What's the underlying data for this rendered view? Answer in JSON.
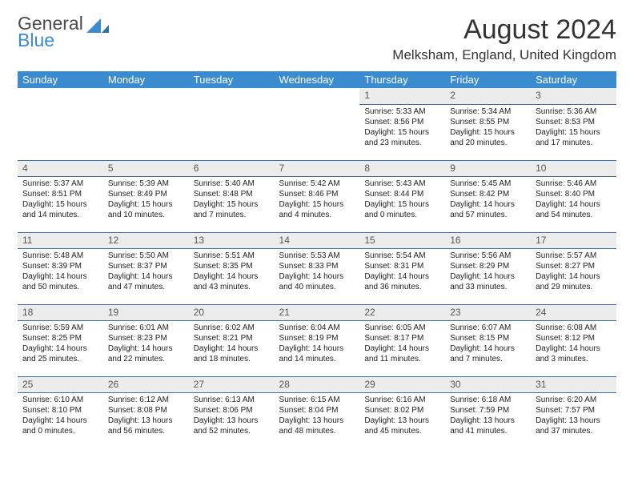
{
  "logo": {
    "line1": "General",
    "line2": "Blue",
    "mark_color": "#3a8bd0"
  },
  "title": "August 2024",
  "location": "Melksham, England, United Kingdom",
  "colors": {
    "header_bg": "#3a8bd0",
    "header_text": "#ffffff",
    "daynum_bg": "#ececec",
    "border": "#3a6ea5",
    "text": "#222222",
    "page_bg": "#ffffff"
  },
  "day_headers": [
    "Sunday",
    "Monday",
    "Tuesday",
    "Wednesday",
    "Thursday",
    "Friday",
    "Saturday"
  ],
  "weeks": [
    [
      null,
      null,
      null,
      null,
      {
        "n": "1",
        "sr": "Sunrise: 5:33 AM",
        "ss": "Sunset: 8:56 PM",
        "d1": "Daylight: 15 hours",
        "d2": "and 23 minutes."
      },
      {
        "n": "2",
        "sr": "Sunrise: 5:34 AM",
        "ss": "Sunset: 8:55 PM",
        "d1": "Daylight: 15 hours",
        "d2": "and 20 minutes."
      },
      {
        "n": "3",
        "sr": "Sunrise: 5:36 AM",
        "ss": "Sunset: 8:53 PM",
        "d1": "Daylight: 15 hours",
        "d2": "and 17 minutes."
      }
    ],
    [
      {
        "n": "4",
        "sr": "Sunrise: 5:37 AM",
        "ss": "Sunset: 8:51 PM",
        "d1": "Daylight: 15 hours",
        "d2": "and 14 minutes."
      },
      {
        "n": "5",
        "sr": "Sunrise: 5:39 AM",
        "ss": "Sunset: 8:49 PM",
        "d1": "Daylight: 15 hours",
        "d2": "and 10 minutes."
      },
      {
        "n": "6",
        "sr": "Sunrise: 5:40 AM",
        "ss": "Sunset: 8:48 PM",
        "d1": "Daylight: 15 hours",
        "d2": "and 7 minutes."
      },
      {
        "n": "7",
        "sr": "Sunrise: 5:42 AM",
        "ss": "Sunset: 8:46 PM",
        "d1": "Daylight: 15 hours",
        "d2": "and 4 minutes."
      },
      {
        "n": "8",
        "sr": "Sunrise: 5:43 AM",
        "ss": "Sunset: 8:44 PM",
        "d1": "Daylight: 15 hours",
        "d2": "and 0 minutes."
      },
      {
        "n": "9",
        "sr": "Sunrise: 5:45 AM",
        "ss": "Sunset: 8:42 PM",
        "d1": "Daylight: 14 hours",
        "d2": "and 57 minutes."
      },
      {
        "n": "10",
        "sr": "Sunrise: 5:46 AM",
        "ss": "Sunset: 8:40 PM",
        "d1": "Daylight: 14 hours",
        "d2": "and 54 minutes."
      }
    ],
    [
      {
        "n": "11",
        "sr": "Sunrise: 5:48 AM",
        "ss": "Sunset: 8:39 PM",
        "d1": "Daylight: 14 hours",
        "d2": "and 50 minutes."
      },
      {
        "n": "12",
        "sr": "Sunrise: 5:50 AM",
        "ss": "Sunset: 8:37 PM",
        "d1": "Daylight: 14 hours",
        "d2": "and 47 minutes."
      },
      {
        "n": "13",
        "sr": "Sunrise: 5:51 AM",
        "ss": "Sunset: 8:35 PM",
        "d1": "Daylight: 14 hours",
        "d2": "and 43 minutes."
      },
      {
        "n": "14",
        "sr": "Sunrise: 5:53 AM",
        "ss": "Sunset: 8:33 PM",
        "d1": "Daylight: 14 hours",
        "d2": "and 40 minutes."
      },
      {
        "n": "15",
        "sr": "Sunrise: 5:54 AM",
        "ss": "Sunset: 8:31 PM",
        "d1": "Daylight: 14 hours",
        "d2": "and 36 minutes."
      },
      {
        "n": "16",
        "sr": "Sunrise: 5:56 AM",
        "ss": "Sunset: 8:29 PM",
        "d1": "Daylight: 14 hours",
        "d2": "and 33 minutes."
      },
      {
        "n": "17",
        "sr": "Sunrise: 5:57 AM",
        "ss": "Sunset: 8:27 PM",
        "d1": "Daylight: 14 hours",
        "d2": "and 29 minutes."
      }
    ],
    [
      {
        "n": "18",
        "sr": "Sunrise: 5:59 AM",
        "ss": "Sunset: 8:25 PM",
        "d1": "Daylight: 14 hours",
        "d2": "and 25 minutes."
      },
      {
        "n": "19",
        "sr": "Sunrise: 6:01 AM",
        "ss": "Sunset: 8:23 PM",
        "d1": "Daylight: 14 hours",
        "d2": "and 22 minutes."
      },
      {
        "n": "20",
        "sr": "Sunrise: 6:02 AM",
        "ss": "Sunset: 8:21 PM",
        "d1": "Daylight: 14 hours",
        "d2": "and 18 minutes."
      },
      {
        "n": "21",
        "sr": "Sunrise: 6:04 AM",
        "ss": "Sunset: 8:19 PM",
        "d1": "Daylight: 14 hours",
        "d2": "and 14 minutes."
      },
      {
        "n": "22",
        "sr": "Sunrise: 6:05 AM",
        "ss": "Sunset: 8:17 PM",
        "d1": "Daylight: 14 hours",
        "d2": "and 11 minutes."
      },
      {
        "n": "23",
        "sr": "Sunrise: 6:07 AM",
        "ss": "Sunset: 8:15 PM",
        "d1": "Daylight: 14 hours",
        "d2": "and 7 minutes."
      },
      {
        "n": "24",
        "sr": "Sunrise: 6:08 AM",
        "ss": "Sunset: 8:12 PM",
        "d1": "Daylight: 14 hours",
        "d2": "and 3 minutes."
      }
    ],
    [
      {
        "n": "25",
        "sr": "Sunrise: 6:10 AM",
        "ss": "Sunset: 8:10 PM",
        "d1": "Daylight: 14 hours",
        "d2": "and 0 minutes."
      },
      {
        "n": "26",
        "sr": "Sunrise: 6:12 AM",
        "ss": "Sunset: 8:08 PM",
        "d1": "Daylight: 13 hours",
        "d2": "and 56 minutes."
      },
      {
        "n": "27",
        "sr": "Sunrise: 6:13 AM",
        "ss": "Sunset: 8:06 PM",
        "d1": "Daylight: 13 hours",
        "d2": "and 52 minutes."
      },
      {
        "n": "28",
        "sr": "Sunrise: 6:15 AM",
        "ss": "Sunset: 8:04 PM",
        "d1": "Daylight: 13 hours",
        "d2": "and 48 minutes."
      },
      {
        "n": "29",
        "sr": "Sunrise: 6:16 AM",
        "ss": "Sunset: 8:02 PM",
        "d1": "Daylight: 13 hours",
        "d2": "and 45 minutes."
      },
      {
        "n": "30",
        "sr": "Sunrise: 6:18 AM",
        "ss": "Sunset: 7:59 PM",
        "d1": "Daylight: 13 hours",
        "d2": "and 41 minutes."
      },
      {
        "n": "31",
        "sr": "Sunrise: 6:20 AM",
        "ss": "Sunset: 7:57 PM",
        "d1": "Daylight: 13 hours",
        "d2": "and 37 minutes."
      }
    ]
  ]
}
